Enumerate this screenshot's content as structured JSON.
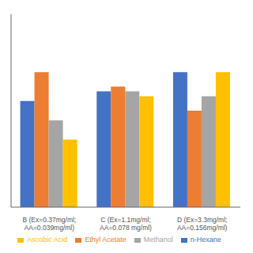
{
  "chart_data": {
    "type": "bar",
    "categories": [
      "B (Ex=0.37mg/ml;\nAA=0.039mg/ml)",
      "C (Ex=1.1mg/ml;\nAA=0.078 mg/ml)",
      "D (Ex=3.3mg/ml;\nAA=0.156mg/ml)"
    ],
    "series": [
      {
        "name": "n-Hexane",
        "color": "#4472C4",
        "values": [
          82,
          84,
          88
        ]
      },
      {
        "name": "Ethyl Acetate",
        "color": "#ED7D31",
        "values": [
          88,
          85,
          80
        ]
      },
      {
        "name": "Methanol",
        "color": "#A5A5A5",
        "values": [
          78,
          84,
          83
        ]
      },
      {
        "name": "Ascobic Acid",
        "color": "#FFC000",
        "values": [
          74,
          83,
          88
        ]
      }
    ],
    "ylim": [
      60,
      100
    ],
    "tick_labels": "x",
    "grid": false,
    "legend": "bottom"
  }
}
